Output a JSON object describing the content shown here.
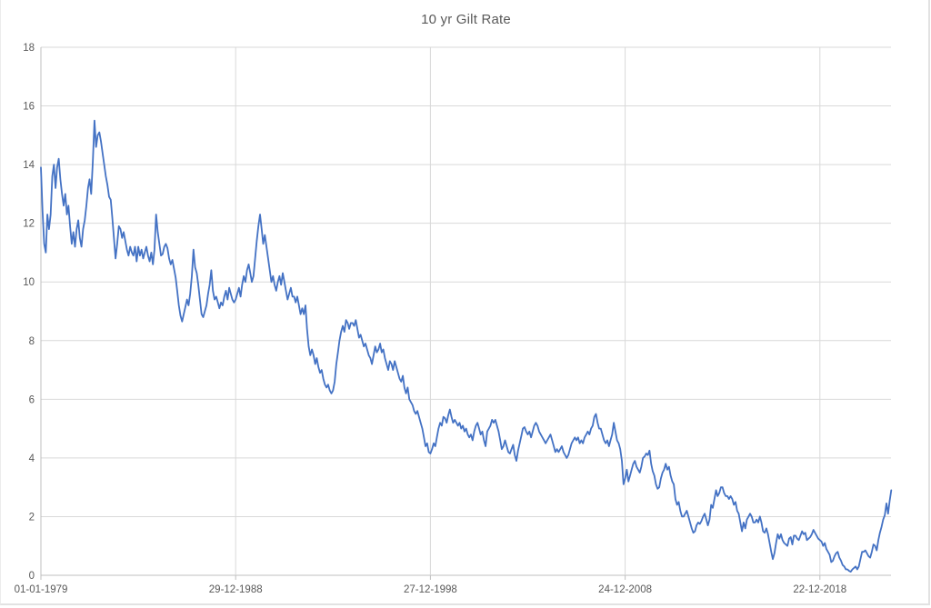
{
  "chart_data": {
    "type": "line",
    "title": "10 yr Gilt Rate",
    "legend_position": "none",
    "grid": true,
    "x_axis": {
      "tick_labels": [
        "01-01-1979",
        "29-12-1988",
        "27-12-1998",
        "24-12-2008",
        "22-12-2018"
      ],
      "tick_month_indices": [
        0,
        120,
        240,
        360,
        480
      ]
    },
    "y_axis": {
      "min": 0,
      "max": 18,
      "step": 2,
      "tick_labels": [
        "0",
        "2",
        "4",
        "6",
        "8",
        "10",
        "12",
        "14",
        "16",
        "18"
      ]
    },
    "colors": {
      "line": "#4472C4",
      "gridline": "#D9D9D9",
      "axis_line": "#BFBFBF",
      "axis_text": "#595959",
      "title_text": "#595959"
    },
    "series": [
      {
        "name": "10 yr Gilt Rate",
        "color": "#4472C4",
        "start_month": "1979-01",
        "end_month": "2022-09",
        "frequency": "monthly",
        "values": [
          13.9,
          12.4,
          11.3,
          11.0,
          12.3,
          11.8,
          12.3,
          13.6,
          14.0,
          13.2,
          13.9,
          14.2,
          13.5,
          13.0,
          12.6,
          13.0,
          12.3,
          12.6,
          11.9,
          11.3,
          11.7,
          11.2,
          11.8,
          12.1,
          11.5,
          11.2,
          11.8,
          12.1,
          12.6,
          13.2,
          13.5,
          13.0,
          14.1,
          15.5,
          14.6,
          15.0,
          15.1,
          14.8,
          14.4,
          14.0,
          13.6,
          13.3,
          12.9,
          12.8,
          12.2,
          11.5,
          10.8,
          11.3,
          11.9,
          11.8,
          11.5,
          11.7,
          11.4,
          11.1,
          10.9,
          11.2,
          11.0,
          10.9,
          11.2,
          10.7,
          11.2,
          10.9,
          11.1,
          10.8,
          11.0,
          11.2,
          10.9,
          10.7,
          11.0,
          10.6,
          11.1,
          12.3,
          11.7,
          11.3,
          10.9,
          10.95,
          11.2,
          11.3,
          11.15,
          10.8,
          10.6,
          10.75,
          10.45,
          10.15,
          9.7,
          9.2,
          8.85,
          8.65,
          8.9,
          9.15,
          9.4,
          9.2,
          9.6,
          10.2,
          11.1,
          10.5,
          10.3,
          9.9,
          9.4,
          8.9,
          8.8,
          9.0,
          9.2,
          9.6,
          9.9,
          10.4,
          9.7,
          9.4,
          9.5,
          9.3,
          9.1,
          9.3,
          9.2,
          9.5,
          9.7,
          9.4,
          9.8,
          9.6,
          9.4,
          9.3,
          9.4,
          9.6,
          9.8,
          9.5,
          9.9,
          10.2,
          10.0,
          10.4,
          10.6,
          10.3,
          10.0,
          10.2,
          10.8,
          11.4,
          11.9,
          12.3,
          11.8,
          11.3,
          11.6,
          11.2,
          10.8,
          10.4,
          10.0,
          10.2,
          9.9,
          9.7,
          10.0,
          10.2,
          9.9,
          10.3,
          10.0,
          9.7,
          9.4,
          9.6,
          9.8,
          9.5,
          9.5,
          9.3,
          9.5,
          9.2,
          8.9,
          9.1,
          8.9,
          9.2,
          8.4,
          7.8,
          7.5,
          7.7,
          7.5,
          7.2,
          7.4,
          7.1,
          6.9,
          7.0,
          6.7,
          6.5,
          6.4,
          6.5,
          6.3,
          6.2,
          6.3,
          6.6,
          7.2,
          7.6,
          8.0,
          8.3,
          8.5,
          8.3,
          8.7,
          8.6,
          8.4,
          8.6,
          8.6,
          8.5,
          8.7,
          8.4,
          8.1,
          8.2,
          8.0,
          7.8,
          7.9,
          7.7,
          7.5,
          7.4,
          7.2,
          7.5,
          7.8,
          7.6,
          7.7,
          7.9,
          7.6,
          7.7,
          7.4,
          7.2,
          7.0,
          7.3,
          7.2,
          7.0,
          7.3,
          7.1,
          6.9,
          6.7,
          6.6,
          6.8,
          6.4,
          6.2,
          6.4,
          6.0,
          5.9,
          5.8,
          5.6,
          5.5,
          5.6,
          5.4,
          5.2,
          5.0,
          4.7,
          4.4,
          4.5,
          4.2,
          4.15,
          4.3,
          4.5,
          4.4,
          4.7,
          5.0,
          5.2,
          5.1,
          5.4,
          5.35,
          5.2,
          5.45,
          5.65,
          5.4,
          5.2,
          5.3,
          5.2,
          5.1,
          5.2,
          5.0,
          5.1,
          4.9,
          5.0,
          4.8,
          4.7,
          4.8,
          4.6,
          4.9,
          5.1,
          5.2,
          5.0,
          4.8,
          4.9,
          4.6,
          4.4,
          4.9,
          5.0,
          5.1,
          5.3,
          5.2,
          5.3,
          5.1,
          4.9,
          4.6,
          4.3,
          4.4,
          4.6,
          4.4,
          4.2,
          4.15,
          4.3,
          4.45,
          4.1,
          3.9,
          4.25,
          4.5,
          4.75,
          5.0,
          5.05,
          4.9,
          4.8,
          4.9,
          4.7,
          4.9,
          5.1,
          5.2,
          5.1,
          4.9,
          4.8,
          4.7,
          4.6,
          4.5,
          4.6,
          4.7,
          4.8,
          4.6,
          4.4,
          4.2,
          4.3,
          4.2,
          4.3,
          4.4,
          4.2,
          4.1,
          4.0,
          4.1,
          4.3,
          4.5,
          4.6,
          4.7,
          4.6,
          4.7,
          4.5,
          4.6,
          4.5,
          4.7,
          4.8,
          4.9,
          4.8,
          5.0,
          5.1,
          5.4,
          5.5,
          5.2,
          5.0,
          5.0,
          4.8,
          4.6,
          4.5,
          4.6,
          4.4,
          4.6,
          4.8,
          5.2,
          4.9,
          4.6,
          4.5,
          4.3,
          3.9,
          3.1,
          3.3,
          3.6,
          3.2,
          3.4,
          3.6,
          3.8,
          3.9,
          3.7,
          3.6,
          3.5,
          3.7,
          4.0,
          4.05,
          4.15,
          4.1,
          4.25,
          3.8,
          3.55,
          3.4,
          3.1,
          2.95,
          3.0,
          3.3,
          3.5,
          3.6,
          3.8,
          3.6,
          3.7,
          3.4,
          3.2,
          3.1,
          2.6,
          2.4,
          2.5,
          2.2,
          2.0,
          2.0,
          2.1,
          2.2,
          2.0,
          1.8,
          1.6,
          1.45,
          1.5,
          1.7,
          1.8,
          1.75,
          1.85,
          2.0,
          2.1,
          1.9,
          1.7,
          1.9,
          2.4,
          2.3,
          2.6,
          2.9,
          2.7,
          2.8,
          3.0,
          3.0,
          2.8,
          2.7,
          2.7,
          2.6,
          2.7,
          2.6,
          2.4,
          2.5,
          2.2,
          2.1,
          1.8,
          1.5,
          1.8,
          1.6,
          1.9,
          2.0,
          2.1,
          2.0,
          1.8,
          1.8,
          1.9,
          1.8,
          2.0,
          1.8,
          1.5,
          1.45,
          1.6,
          1.4,
          1.1,
          0.8,
          0.55,
          0.75,
          1.1,
          1.4,
          1.25,
          1.4,
          1.2,
          1.1,
          1.05,
          1.0,
          1.25,
          1.3,
          1.05,
          1.35,
          1.35,
          1.25,
          1.2,
          1.35,
          1.5,
          1.4,
          1.45,
          1.2,
          1.25,
          1.3,
          1.4,
          1.55,
          1.45,
          1.35,
          1.25,
          1.2,
          1.15,
          1.0,
          1.1,
          0.9,
          0.8,
          0.7,
          0.45,
          0.5,
          0.65,
          0.75,
          0.8,
          0.6,
          0.5,
          0.35,
          0.3,
          0.2,
          0.2,
          0.15,
          0.12,
          0.2,
          0.25,
          0.3,
          0.2,
          0.3,
          0.55,
          0.8,
          0.8,
          0.85,
          0.75,
          0.65,
          0.6,
          0.8,
          1.05,
          1.0,
          0.85,
          1.2,
          1.45,
          1.65,
          1.9,
          2.05,
          2.45,
          2.1,
          2.55,
          2.9
        ]
      }
    ]
  }
}
